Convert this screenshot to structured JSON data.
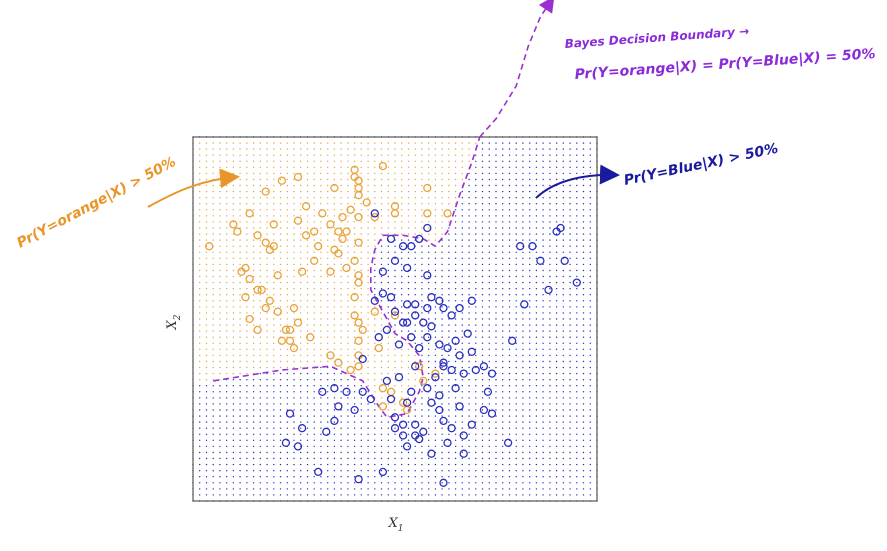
{
  "chart_data": {
    "type": "scatter",
    "title": "",
    "xlabel": "X",
    "xlabel_sub": "1",
    "ylabel": "X",
    "ylabel_sub": "2",
    "xlim": [
      0,
      1
    ],
    "ylim": [
      0,
      1
    ],
    "grid": false,
    "legend": "none",
    "colors": {
      "orange": "#e8a33a",
      "blue": "#2a2fbf",
      "boundary": "#9b30d0",
      "note_purple": "#8a2bd9",
      "note_orange": "#e8962a",
      "note_blue": "#1a1a9e"
    },
    "boundary": {
      "name": "Bayes Decision Boundary",
      "points": [
        [
          0.05,
          0.33
        ],
        [
          0.22,
          0.36
        ],
        [
          0.34,
          0.37
        ],
        [
          0.42,
          0.33
        ],
        [
          0.46,
          0.26
        ],
        [
          0.48,
          0.23
        ],
        [
          0.53,
          0.24
        ],
        [
          0.56,
          0.3
        ],
        [
          0.57,
          0.34
        ],
        [
          0.56,
          0.4
        ],
        [
          0.53,
          0.44
        ],
        [
          0.5,
          0.46
        ],
        [
          0.47,
          0.52
        ],
        [
          0.44,
          0.58
        ],
        [
          0.44,
          0.64
        ],
        [
          0.45,
          0.69
        ],
        [
          0.47,
          0.73
        ],
        [
          0.52,
          0.73
        ],
        [
          0.57,
          0.72
        ],
        [
          0.6,
          0.7
        ],
        [
          0.63,
          0.74
        ],
        [
          0.66,
          0.84
        ],
        [
          0.69,
          0.93
        ],
        [
          0.71,
          1.0
        ]
      ],
      "extension": [
        [
          0.71,
          1.0
        ],
        [
          0.75,
          1.05
        ],
        [
          0.8,
          1.14
        ],
        [
          0.83,
          1.25
        ],
        [
          0.86,
          1.33
        ],
        [
          0.89,
          1.38
        ]
      ]
    },
    "series": [
      {
        "name": "orange",
        "points": [
          [
            0.04,
            0.7
          ],
          [
            0.1,
            0.76
          ],
          [
            0.11,
            0.74
          ],
          [
            0.14,
            0.79
          ],
          [
            0.16,
            0.73
          ],
          [
            0.18,
            0.71
          ],
          [
            0.13,
            0.64
          ],
          [
            0.12,
            0.63
          ],
          [
            0.14,
            0.61
          ],
          [
            0.13,
            0.56
          ],
          [
            0.16,
            0.58
          ],
          [
            0.18,
            0.53
          ],
          [
            0.19,
            0.55
          ],
          [
            0.21,
            0.52
          ],
          [
            0.16,
            0.47
          ],
          [
            0.14,
            0.5
          ],
          [
            0.23,
            0.47
          ],
          [
            0.24,
            0.47
          ],
          [
            0.24,
            0.44
          ],
          [
            0.25,
            0.42
          ],
          [
            0.22,
            0.44
          ],
          [
            0.25,
            0.53
          ],
          [
            0.26,
            0.49
          ],
          [
            0.21,
            0.62
          ],
          [
            0.19,
            0.69
          ],
          [
            0.2,
            0.7
          ],
          [
            0.2,
            0.76
          ],
          [
            0.18,
            0.85
          ],
          [
            0.22,
            0.88
          ],
          [
            0.26,
            0.89
          ],
          [
            0.28,
            0.81
          ],
          [
            0.26,
            0.77
          ],
          [
            0.28,
            0.73
          ],
          [
            0.31,
            0.7
          ],
          [
            0.3,
            0.66
          ],
          [
            0.34,
            0.63
          ],
          [
            0.35,
            0.69
          ],
          [
            0.36,
            0.68
          ],
          [
            0.37,
            0.72
          ],
          [
            0.36,
            0.74
          ],
          [
            0.34,
            0.76
          ],
          [
            0.32,
            0.79
          ],
          [
            0.37,
            0.78
          ],
          [
            0.38,
            0.74
          ],
          [
            0.39,
            0.8
          ],
          [
            0.41,
            0.78
          ],
          [
            0.41,
            0.71
          ],
          [
            0.4,
            0.66
          ],
          [
            0.41,
            0.62
          ],
          [
            0.38,
            0.64
          ],
          [
            0.35,
            0.86
          ],
          [
            0.4,
            0.91
          ],
          [
            0.41,
            0.88
          ],
          [
            0.41,
            0.86
          ],
          [
            0.41,
            0.84
          ],
          [
            0.43,
            0.82
          ],
          [
            0.4,
            0.89
          ],
          [
            0.47,
            0.92
          ],
          [
            0.5,
            0.81
          ],
          [
            0.58,
            0.86
          ],
          [
            0.63,
            0.79
          ],
          [
            0.58,
            0.79
          ],
          [
            0.5,
            0.79
          ],
          [
            0.45,
            0.78
          ],
          [
            0.41,
            0.6
          ],
          [
            0.4,
            0.56
          ],
          [
            0.4,
            0.51
          ],
          [
            0.41,
            0.49
          ],
          [
            0.42,
            0.47
          ],
          [
            0.41,
            0.44
          ],
          [
            0.41,
            0.4
          ],
          [
            0.39,
            0.36
          ],
          [
            0.36,
            0.38
          ],
          [
            0.41,
            0.37
          ],
          [
            0.45,
            0.52
          ],
          [
            0.46,
            0.42
          ],
          [
            0.47,
            0.31
          ],
          [
            0.49,
            0.3
          ],
          [
            0.47,
            0.26
          ],
          [
            0.52,
            0.27
          ],
          [
            0.53,
            0.25
          ],
          [
            0.56,
            0.37
          ],
          [
            0.57,
            0.33
          ],
          [
            0.6,
            0.35
          ],
          [
            0.5,
            0.51
          ],
          [
            0.3,
            0.74
          ],
          [
            0.29,
            0.45
          ],
          [
            0.34,
            0.4
          ],
          [
            0.27,
            0.63
          ],
          [
            0.17,
            0.58
          ]
        ]
      },
      {
        "name": "blue",
        "points": [
          [
            0.45,
            0.79
          ],
          [
            0.49,
            0.72
          ],
          [
            0.52,
            0.7
          ],
          [
            0.54,
            0.7
          ],
          [
            0.56,
            0.72
          ],
          [
            0.58,
            0.75
          ],
          [
            0.5,
            0.66
          ],
          [
            0.53,
            0.64
          ],
          [
            0.58,
            0.62
          ],
          [
            0.47,
            0.63
          ],
          [
            0.47,
            0.57
          ],
          [
            0.45,
            0.55
          ],
          [
            0.49,
            0.56
          ],
          [
            0.53,
            0.54
          ],
          [
            0.55,
            0.54
          ],
          [
            0.59,
            0.56
          ],
          [
            0.61,
            0.55
          ],
          [
            0.58,
            0.53
          ],
          [
            0.62,
            0.53
          ],
          [
            0.64,
            0.51
          ],
          [
            0.66,
            0.53
          ],
          [
            0.69,
            0.55
          ],
          [
            0.5,
            0.52
          ],
          [
            0.52,
            0.49
          ],
          [
            0.53,
            0.49
          ],
          [
            0.55,
            0.51
          ],
          [
            0.57,
            0.49
          ],
          [
            0.59,
            0.48
          ],
          [
            0.48,
            0.47
          ],
          [
            0.46,
            0.45
          ],
          [
            0.51,
            0.43
          ],
          [
            0.54,
            0.45
          ],
          [
            0.56,
            0.42
          ],
          [
            0.58,
            0.45
          ],
          [
            0.61,
            0.43
          ],
          [
            0.63,
            0.42
          ],
          [
            0.65,
            0.44
          ],
          [
            0.66,
            0.4
          ],
          [
            0.69,
            0.41
          ],
          [
            0.62,
            0.38
          ],
          [
            0.64,
            0.36
          ],
          [
            0.67,
            0.35
          ],
          [
            0.7,
            0.36
          ],
          [
            0.72,
            0.37
          ],
          [
            0.74,
            0.35
          ],
          [
            0.6,
            0.34
          ],
          [
            0.65,
            0.31
          ],
          [
            0.61,
            0.29
          ],
          [
            0.59,
            0.27
          ],
          [
            0.62,
            0.22
          ],
          [
            0.64,
            0.2
          ],
          [
            0.57,
            0.19
          ],
          [
            0.55,
            0.18
          ],
          [
            0.56,
            0.17
          ],
          [
            0.63,
            0.16
          ],
          [
            0.67,
            0.18
          ],
          [
            0.69,
            0.21
          ],
          [
            0.72,
            0.25
          ],
          [
            0.73,
            0.3
          ],
          [
            0.66,
            0.26
          ],
          [
            0.52,
            0.21
          ],
          [
            0.55,
            0.21
          ],
          [
            0.5,
            0.23
          ],
          [
            0.53,
            0.27
          ],
          [
            0.52,
            0.18
          ],
          [
            0.59,
            0.13
          ],
          [
            0.5,
            0.2
          ],
          [
            0.49,
            0.28
          ],
          [
            0.54,
            0.3
          ],
          [
            0.51,
            0.34
          ],
          [
            0.58,
            0.31
          ],
          [
            0.61,
            0.25
          ],
          [
            0.67,
            0.13
          ],
          [
            0.74,
            0.24
          ],
          [
            0.78,
            0.16
          ],
          [
            0.79,
            0.44
          ],
          [
            0.82,
            0.54
          ],
          [
            0.86,
            0.66
          ],
          [
            0.91,
            0.75
          ],
          [
            0.9,
            0.74
          ],
          [
            0.92,
            0.66
          ],
          [
            0.88,
            0.58
          ],
          [
            0.95,
            0.6
          ],
          [
            0.81,
            0.7
          ],
          [
            0.84,
            0.7
          ],
          [
            0.42,
            0.39
          ],
          [
            0.62,
            0.37
          ],
          [
            0.68,
            0.46
          ],
          [
            0.42,
            0.3
          ],
          [
            0.44,
            0.28
          ],
          [
            0.48,
            0.33
          ],
          [
            0.35,
            0.22
          ],
          [
            0.32,
            0.3
          ],
          [
            0.35,
            0.31
          ],
          [
            0.38,
            0.3
          ],
          [
            0.36,
            0.26
          ],
          [
            0.4,
            0.25
          ],
          [
            0.24,
            0.24
          ],
          [
            0.23,
            0.16
          ],
          [
            0.27,
            0.2
          ],
          [
            0.26,
            0.15
          ],
          [
            0.33,
            0.19
          ],
          [
            0.31,
            0.08
          ],
          [
            0.41,
            0.06
          ],
          [
            0.47,
            0.08
          ],
          [
            0.62,
            0.05
          ],
          [
            0.53,
            0.15
          ],
          [
            0.55,
            0.37
          ]
        ]
      }
    ]
  },
  "annotations": {
    "bayes_title": "Bayes Decision Boundary →",
    "bayes_formula": "Pr(Y=orange|X) = Pr(Y=Blue|X) = 50%",
    "left_note": "Pr(Y=orange|X) > 50%",
    "right_note": "Pr(Y=Blue|X) > 50%"
  }
}
